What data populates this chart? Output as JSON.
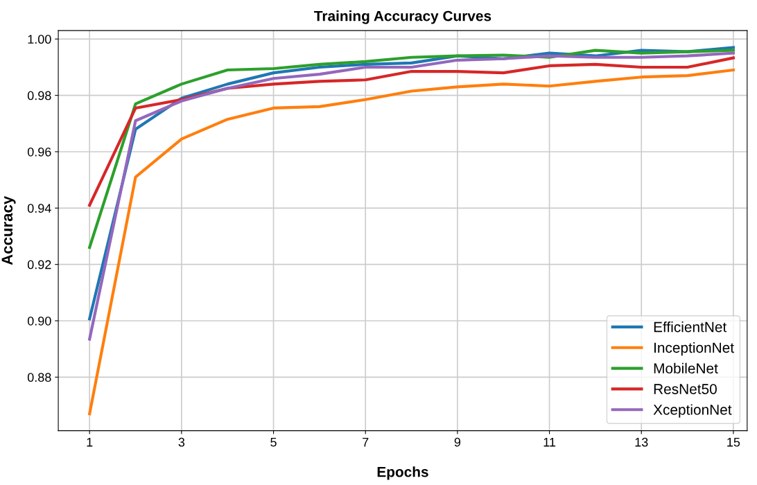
{
  "chart_data": {
    "type": "line",
    "title": "Training Accuracy Curves",
    "xlabel": "Epochs",
    "ylabel": "Accuracy",
    "x": [
      1,
      2,
      3,
      4,
      5,
      6,
      7,
      8,
      9,
      10,
      11,
      12,
      13,
      14,
      15
    ],
    "series": [
      {
        "name": "EfficientNet",
        "color": "#1f77b4",
        "values": [
          0.9007,
          0.968,
          0.979,
          0.984,
          0.988,
          0.99,
          0.991,
          0.9915,
          0.994,
          0.993,
          0.995,
          0.994,
          0.996,
          0.9955,
          0.997
        ]
      },
      {
        "name": "InceptionNet",
        "color": "#ff7f0e",
        "values": [
          0.867,
          0.951,
          0.9645,
          0.9715,
          0.9755,
          0.976,
          0.9785,
          0.9815,
          0.983,
          0.984,
          0.9833,
          0.985,
          0.9865,
          0.987,
          0.989
        ]
      },
      {
        "name": "MobileNet",
        "color": "#2ca02c",
        "values": [
          0.926,
          0.977,
          0.984,
          0.989,
          0.9895,
          0.991,
          0.992,
          0.9935,
          0.994,
          0.9943,
          0.9935,
          0.996,
          0.995,
          0.9955,
          0.996
        ]
      },
      {
        "name": "ResNet50",
        "color": "#d62728",
        "values": [
          0.941,
          0.9755,
          0.9785,
          0.9825,
          0.984,
          0.985,
          0.9855,
          0.9885,
          0.9885,
          0.988,
          0.9905,
          0.991,
          0.99,
          0.99,
          0.9933
        ]
      },
      {
        "name": "XceptionNet",
        "color": "#9467bd",
        "values": [
          0.8935,
          0.971,
          0.978,
          0.9825,
          0.986,
          0.9875,
          0.99,
          0.99,
          0.9925,
          0.993,
          0.994,
          0.9935,
          0.9935,
          0.994,
          0.995
        ]
      }
    ],
    "xlim": [
      0.32,
      15.3
    ],
    "ylim": [
      0.861,
      1.003
    ],
    "xticks": [
      1,
      3,
      5,
      7,
      9,
      11,
      13,
      15
    ],
    "yticks": [
      {
        "value": 0.88,
        "label": "0.88"
      },
      {
        "value": 0.9,
        "label": "0.90"
      },
      {
        "value": 0.92,
        "label": "0.92"
      },
      {
        "value": 0.94,
        "label": "0.94"
      },
      {
        "value": 0.96,
        "label": "0.96"
      },
      {
        "value": 0.98,
        "label": "0.98"
      },
      {
        "value": 1.0,
        "label": "1.00"
      }
    ],
    "grid": true,
    "legend": "bottom right",
    "marker": "none",
    "line_style": "solid"
  }
}
